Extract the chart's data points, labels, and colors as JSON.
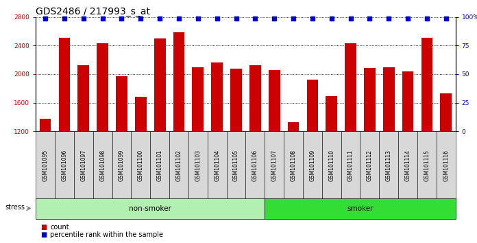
{
  "title": "GDS2486 / 217993_s_at",
  "samples": [
    "GSM101095",
    "GSM101096",
    "GSM101097",
    "GSM101098",
    "GSM101099",
    "GSM101100",
    "GSM101101",
    "GSM101102",
    "GSM101103",
    "GSM101104",
    "GSM101105",
    "GSM101106",
    "GSM101107",
    "GSM101108",
    "GSM101109",
    "GSM101110",
    "GSM101111",
    "GSM101112",
    "GSM101113",
    "GSM101114",
    "GSM101115",
    "GSM101116"
  ],
  "counts": [
    1370,
    2510,
    2120,
    2430,
    1970,
    1680,
    2500,
    2590,
    2100,
    2160,
    2080,
    2120,
    2060,
    1330,
    1920,
    1690,
    2430,
    2090,
    2100,
    2040,
    2510,
    1730
  ],
  "bar_color": "#cc0000",
  "percentile_color": "#0000cc",
  "ylim_left": [
    1200,
    2800
  ],
  "ylim_right": [
    0,
    100
  ],
  "yticks_left": [
    1200,
    1600,
    2000,
    2400,
    2800
  ],
  "yticks_right": [
    0,
    25,
    50,
    75,
    100
  ],
  "ytick_labels_right": [
    "0",
    "25",
    "50",
    "75",
    "100%"
  ],
  "non_smoker_count": 12,
  "smoker_count": 10,
  "non_smoker_color": "#b2f0b2",
  "smoker_color": "#33dd33",
  "stress_label": "stress",
  "non_smoker_label": "non-smoker",
  "smoker_label": "smoker",
  "legend_count_label": "count",
  "legend_percentile_label": "percentile rank within the sample",
  "background_plot": "#ffffff",
  "tick_label_bg": "#d8d8d8",
  "title_fontsize": 10,
  "tick_fontsize": 6.5
}
